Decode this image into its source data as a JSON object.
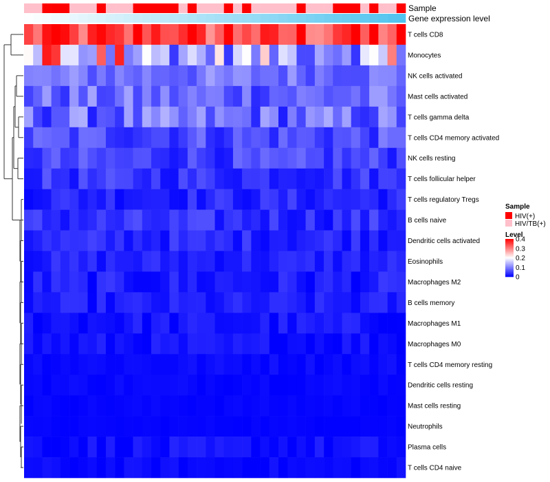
{
  "chart_data": {
    "type": "heatmap",
    "annotation_labels": {
      "sample": "Sample",
      "gene": "Gene expression level"
    },
    "rows": [
      "T cells CD8",
      "Monocytes",
      "NK cells activated",
      "Mast cells activated",
      "T cells gamma delta",
      "T cells CD4 memory activated",
      "NK cells resting",
      "T cells follicular helper",
      "T cells regulatory  Tregs",
      "B cells naive",
      "Dendritic cells activated",
      "Eosinophils",
      "Macrophages M2",
      "B cells memory",
      "Macrophages M1",
      "Macrophages M0",
      "T cells CD4 memory resting",
      "Dendritic cells resting",
      "Mast cells resting",
      "Neutrophils",
      "Plasma cells",
      "T cells CD4 naive"
    ],
    "n_columns": 42,
    "sample_annotation": [
      1,
      1,
      0,
      0,
      0,
      1,
      1,
      1,
      0,
      1,
      1,
      1,
      0,
      0,
      0,
      0,
      0,
      1,
      0,
      1,
      1,
      1,
      0,
      1,
      0,
      1,
      1,
      1,
      1,
      1,
      0,
      1,
      1,
      1,
      0,
      0,
      0,
      1,
      0,
      1,
      1,
      0
    ],
    "gene_expression_gradient": {
      "start": "#ffffff",
      "end": "#4fc3ef"
    },
    "legend": {
      "sample": {
        "title": "Sample",
        "entries": [
          {
            "label": "HIV(+)",
            "color": "#ff0000"
          },
          {
            "label": "HIV/TB(+)",
            "color": "#ffc0cb"
          }
        ]
      },
      "level": {
        "title": "Level",
        "ticks": [
          "0.4",
          "0.3",
          "0.2",
          "0.1",
          "0"
        ],
        "tick_values": [
          0.4,
          0.3,
          0.2,
          0.1,
          0
        ],
        "range": [
          0,
          0.4
        ]
      }
    },
    "colors": {
      "low": "#0000ff",
      "mid": "#ffffff",
      "high": "#ff0000"
    },
    "row_base_levels": [
      0.33,
      0.14,
      0.09,
      0.08,
      0.08,
      0.06,
      0.05,
      0.04,
      0.03,
      0.035,
      0.03,
      0.025,
      0.02,
      0.02,
      0.015,
      0.012,
      0.008,
      0.006,
      0.004,
      0.003,
      0.01,
      0.006
    ],
    "row_spread": [
      0.06,
      0.1,
      0.04,
      0.05,
      0.06,
      0.04,
      0.035,
      0.03,
      0.025,
      0.03,
      0.025,
      0.02,
      0.025,
      0.02,
      0.02,
      0.018,
      0.008,
      0.006,
      0.004,
      0.003,
      0.018,
      0.01
    ]
  }
}
